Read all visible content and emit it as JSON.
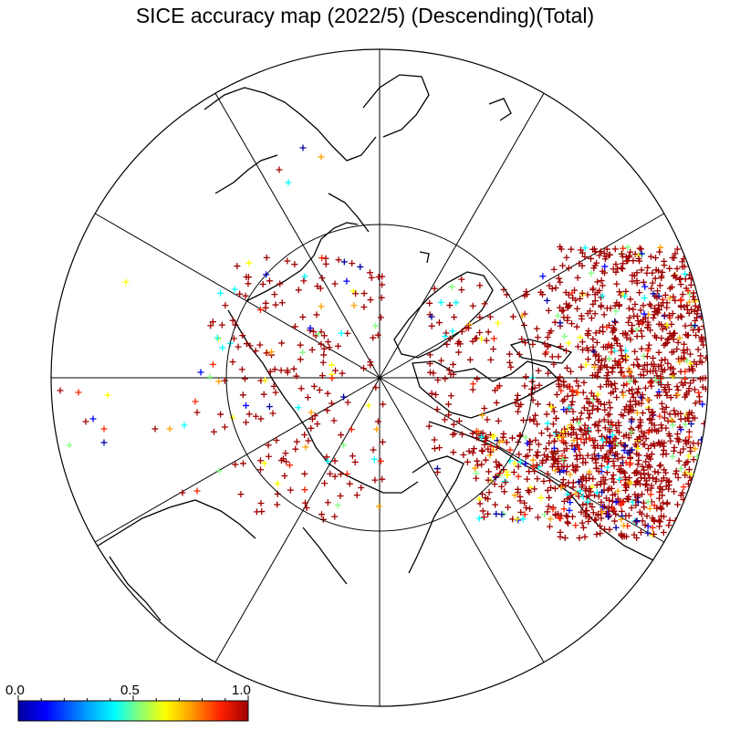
{
  "title": "SICE accuracy map (2022/5) (Descending)(Total)",
  "colorbar": {
    "labels": [
      "0.0",
      "0.5",
      "1.0"
    ],
    "stops": [
      "#0000a0",
      "#0000ff",
      "#00a0ff",
      "#00ffff",
      "#80ff80",
      "#ffff00",
      "#ffa000",
      "#ff2000",
      "#a00000"
    ]
  },
  "map": {
    "projection": "north-polar-stereographic",
    "meridian_lines": 12,
    "inner_circle": true,
    "land_color": "#000000",
    "marker_symbol": "+"
  },
  "color_legend": {
    "dark_red": "#a00000",
    "red": "#ff2000",
    "orange": "#ffa000",
    "yellow": "#ffff00",
    "green": "#80ff80",
    "cyan": "#00ffff",
    "blue": "#0000ff",
    "navy": "#0000a0"
  }
}
